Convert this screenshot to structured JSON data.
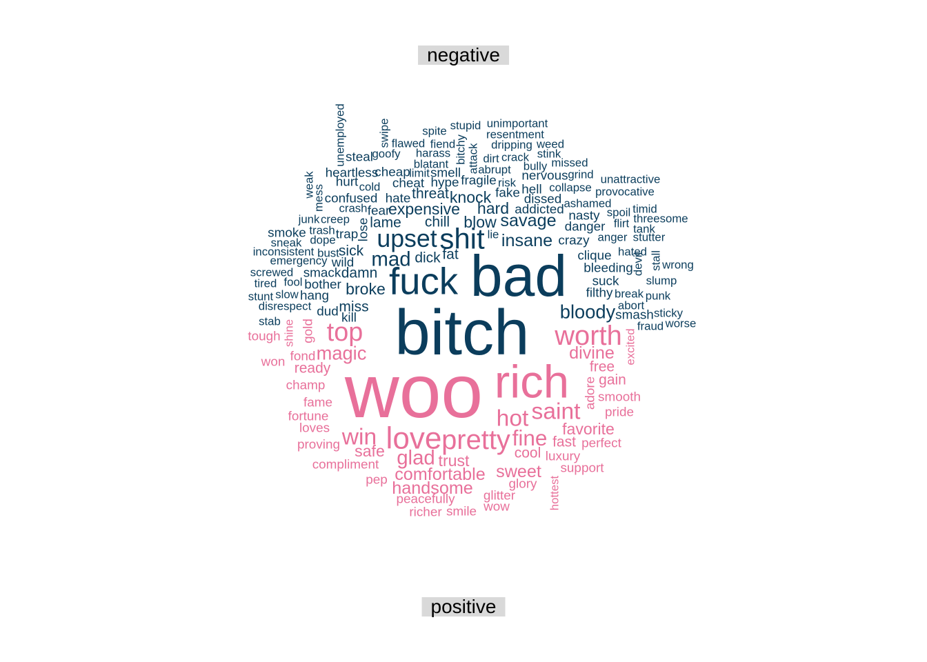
{
  "chart_data": {
    "type": "wordcloud",
    "groups": [
      {
        "name": "negative",
        "color": "#0b3d5c"
      },
      {
        "name": "positive",
        "color": "#e8709a"
      }
    ],
    "words": [
      [
        "bitch",
        "negative",
        44,
        670,
        482,
        0
      ],
      [
        "bad",
        "negative",
        40,
        752,
        400,
        0
      ],
      [
        "fuck",
        "negative",
        26,
        614,
        408,
        0
      ],
      [
        "shit",
        "negative",
        20,
        670,
        346,
        0
      ],
      [
        "upset",
        "negative",
        17,
        590,
        346,
        0
      ],
      [
        "mad",
        "negative",
        14,
        567,
        376,
        0
      ],
      [
        "bloody",
        "negative",
        13,
        852,
        452,
        0
      ],
      [
        "insane",
        "negative",
        12,
        764,
        349,
        0
      ],
      [
        "savage",
        "negative",
        12,
        766,
        320,
        0
      ],
      [
        "hard",
        "negative",
        11,
        715,
        302,
        0
      ],
      [
        "knock",
        "negative",
        11,
        682,
        286,
        0
      ],
      [
        "expensive",
        "negative",
        11,
        615,
        303,
        0
      ],
      [
        "blow",
        "negative",
        11,
        696,
        322,
        0
      ],
      [
        "broke",
        "negative",
        11,
        530,
        419,
        0
      ],
      [
        "chill",
        "negative",
        10,
        634,
        322,
        0
      ],
      [
        "lame",
        "negative",
        10,
        559,
        323,
        0
      ],
      [
        "dick",
        "negative",
        10,
        620,
        374,
        0
      ],
      [
        "fat",
        "negative",
        10,
        653,
        369,
        0
      ],
      [
        "damn",
        "negative",
        10,
        521,
        396,
        0
      ],
      [
        "sick",
        "negative",
        10,
        509,
        364,
        0
      ],
      [
        "wild",
        "negative",
        9,
        497,
        381,
        0
      ],
      [
        "miss",
        "negative",
        10,
        513,
        445,
        0
      ],
      [
        "kill",
        "negative",
        9,
        506,
        461,
        0
      ],
      [
        "dud",
        "negative",
        9,
        475,
        452,
        0
      ],
      [
        "suck",
        "negative",
        9,
        878,
        408,
        0
      ],
      [
        "filthy",
        "negative",
        9,
        869,
        425,
        0
      ],
      [
        "break",
        "negative",
        8,
        912,
        426,
        0
      ],
      [
        "abort",
        "negative",
        8,
        915,
        443,
        0
      ],
      [
        "smash",
        "negative",
        9,
        920,
        457,
        0
      ],
      [
        "sticky",
        "negative",
        8,
        969,
        454,
        0
      ],
      [
        "worse",
        "negative",
        8,
        987,
        469,
        0
      ],
      [
        "fraud",
        "negative",
        8,
        943,
        473,
        0
      ],
      [
        "punk",
        "negative",
        8,
        954,
        429,
        0
      ],
      [
        "slump",
        "negative",
        8,
        959,
        407,
        0
      ],
      [
        "wrong",
        "negative",
        8,
        983,
        384,
        0
      ],
      [
        "stall",
        "negative",
        8,
        951,
        378,
        -90
      ],
      [
        "devil",
        "negative",
        8,
        925,
        383,
        -90
      ],
      [
        "hated",
        "negative",
        8,
        917,
        365,
        0
      ],
      [
        "bleeding",
        "negative",
        9,
        882,
        389,
        0
      ],
      [
        "clique",
        "negative",
        9,
        862,
        371,
        0
      ],
      [
        "crazy",
        "negative",
        9,
        832,
        349,
        0
      ],
      [
        "anger",
        "negative",
        8,
        888,
        344,
        0
      ],
      [
        "stutter",
        "negative",
        8,
        941,
        344,
        0
      ],
      [
        "tank",
        "negative",
        8,
        934,
        332,
        0
      ],
      [
        "threesome",
        "negative",
        8,
        958,
        317,
        0
      ],
      [
        "timid",
        "negative",
        8,
        935,
        303,
        0
      ],
      [
        "flirt",
        "negative",
        8,
        901,
        324,
        0
      ],
      [
        "spoil",
        "negative",
        8,
        897,
        308,
        0
      ],
      [
        "danger",
        "negative",
        9,
        848,
        329,
        0
      ],
      [
        "nasty",
        "negative",
        9,
        847,
        313,
        0
      ],
      [
        "ashamed",
        "negative",
        8,
        852,
        295,
        0
      ],
      [
        "provocative",
        "negative",
        8,
        906,
        278,
        0
      ],
      [
        "unattractive",
        "negative",
        8,
        914,
        260,
        0
      ],
      [
        "collapse",
        "negative",
        8,
        827,
        272,
        0
      ],
      [
        "grind",
        "negative",
        8,
        842,
        253,
        0
      ],
      [
        "missed",
        "negative",
        8,
        826,
        236,
        0
      ],
      [
        "stink",
        "negative",
        8,
        796,
        223,
        0
      ],
      [
        "weed",
        "negative",
        8,
        798,
        209,
        0
      ],
      [
        "bully",
        "negative",
        8,
        776,
        241,
        0
      ],
      [
        "crack",
        "negative",
        8,
        747,
        228,
        0
      ],
      [
        "dirt",
        "negative",
        8,
        712,
        230,
        0
      ],
      [
        "nervous",
        "negative",
        9,
        790,
        255,
        0
      ],
      [
        "hell",
        "negative",
        9,
        771,
        275,
        0
      ],
      [
        "dissed",
        "negative",
        9,
        787,
        289,
        0
      ],
      [
        "addicted",
        "negative",
        9,
        782,
        304,
        0
      ],
      [
        "risk",
        "negative",
        8,
        735,
        265,
        0
      ],
      [
        "fake",
        "negative",
        9,
        736,
        280,
        0
      ],
      [
        "fragile",
        "negative",
        9,
        694,
        262,
        0
      ],
      [
        "abrupt",
        "negative",
        8,
        717,
        246,
        0
      ],
      [
        "attack",
        "negative",
        8,
        686,
        230,
        -90
      ],
      [
        "bitchy",
        "negative",
        8,
        668,
        217,
        -90
      ],
      [
        "dripping",
        "negative",
        8,
        742,
        210,
        0
      ],
      [
        "resentment",
        "negative",
        8,
        747,
        195,
        0
      ],
      [
        "unimportant",
        "negative",
        8,
        750,
        179,
        0
      ],
      [
        "stupid",
        "negative",
        8,
        675,
        182,
        0
      ],
      [
        "spite",
        "negative",
        8,
        630,
        190,
        0
      ],
      [
        "fiend",
        "negative",
        8,
        642,
        209,
        0
      ],
      [
        "flawed",
        "negative",
        8,
        592,
        208,
        0
      ],
      [
        "swipe",
        "negative",
        8,
        557,
        193,
        -90
      ],
      [
        "harass",
        "negative",
        8,
        628,
        222,
        0
      ],
      [
        "blatant",
        "negative",
        8,
        625,
        238,
        0
      ],
      [
        "smell",
        "negative",
        9,
        646,
        251,
        0
      ],
      [
        "hype",
        "negative",
        9,
        645,
        265,
        0
      ],
      [
        "threat",
        "negative",
        10,
        624,
        281,
        0
      ],
      [
        "cheat",
        "negative",
        9,
        592,
        266,
        0
      ],
      [
        "limit",
        "negative",
        8,
        608,
        251,
        0
      ],
      [
        "cheap",
        "negative",
        9,
        569,
        250,
        0
      ],
      [
        "goofy",
        "negative",
        8,
        560,
        223,
        0
      ],
      [
        "steal",
        "negative",
        9,
        521,
        228,
        0
      ],
      [
        "unemployed",
        "negative",
        8,
        493,
        196,
        -90
      ],
      [
        "heartless",
        "negative",
        9,
        510,
        251,
        0
      ],
      [
        "hurt",
        "negative",
        9,
        503,
        264,
        0
      ],
      [
        "cold",
        "negative",
        8,
        536,
        271,
        0
      ],
      [
        "confused",
        "negative",
        9,
        509,
        288,
        0
      ],
      [
        "hate",
        "negative",
        9,
        577,
        288,
        0
      ],
      [
        "crash",
        "negative",
        8,
        512,
        302,
        0
      ],
      [
        "fear",
        "negative",
        9,
        549,
        306,
        0
      ],
      [
        "weak",
        "negative",
        8,
        448,
        268,
        -90
      ],
      [
        "mess",
        "negative",
        8,
        462,
        287,
        -90
      ],
      [
        "junk",
        "negative",
        8,
        448,
        318,
        0
      ],
      [
        "creep",
        "negative",
        8,
        486,
        318,
        0
      ],
      [
        "lose",
        "negative",
        9,
        527,
        333,
        -90
      ],
      [
        "trash",
        "negative",
        8,
        467,
        334,
        0
      ],
      [
        "trap",
        "negative",
        9,
        503,
        340,
        0
      ],
      [
        "smoke",
        "negative",
        9,
        416,
        338,
        0
      ],
      [
        "dope",
        "negative",
        8,
        468,
        348,
        0
      ],
      [
        "sneak",
        "negative",
        8,
        415,
        352,
        0
      ],
      [
        "lie",
        "negative",
        8,
        715,
        340,
        0
      ],
      [
        "inconsistent",
        "negative",
        8,
        411,
        365,
        0
      ],
      [
        "bust",
        "negative",
        8,
        476,
        367,
        0
      ],
      [
        "emergency",
        "negative",
        8,
        433,
        378,
        0
      ],
      [
        "smack",
        "negative",
        9,
        467,
        396,
        0
      ],
      [
        "screwed",
        "negative",
        8,
        394,
        395,
        0
      ],
      [
        "tired",
        "negative",
        8,
        385,
        411,
        0
      ],
      [
        "fool",
        "negative",
        8,
        425,
        409,
        0
      ],
      [
        "bother",
        "negative",
        9,
        468,
        413,
        0
      ],
      [
        "stunt",
        "negative",
        8,
        378,
        430,
        0
      ],
      [
        "slow",
        "negative",
        8,
        416,
        427,
        0
      ],
      [
        "hang",
        "negative",
        9,
        456,
        429,
        0
      ],
      [
        "disrespect",
        "negative",
        8,
        413,
        444,
        0
      ],
      [
        "stab",
        "negative",
        8,
        391,
        466,
        0
      ],
      [
        "woo",
        "positive",
        52,
        600,
        568,
        0
      ],
      [
        "rich",
        "positive",
        32,
        771,
        554,
        0
      ],
      [
        "love",
        "positive",
        21,
        600,
        636,
        0
      ],
      [
        "pretty",
        "positive",
        19,
        690,
        638,
        0
      ],
      [
        "worth",
        "positive",
        19,
        853,
        487,
        0
      ],
      [
        "top",
        "positive",
        18,
        500,
        482,
        0
      ],
      [
        "saint",
        "positive",
        16,
        806,
        597,
        0
      ],
      [
        "hot",
        "positive",
        16,
        743,
        607,
        0
      ],
      [
        "win",
        "positive",
        16,
        521,
        634,
        0
      ],
      [
        "fine",
        "positive",
        15,
        768,
        635,
        0
      ],
      [
        "glad",
        "positive",
        14,
        603,
        664,
        0
      ],
      [
        "magic",
        "positive",
        13,
        495,
        512,
        0
      ],
      [
        "divine",
        "positive",
        12,
        858,
        512,
        0
      ],
      [
        "comfortable",
        "positive",
        12,
        638,
        688,
        0
      ],
      [
        "sweet",
        "positive",
        12,
        752,
        684,
        0
      ],
      [
        "handsome",
        "positive",
        12,
        627,
        708,
        0
      ],
      [
        "safe",
        "positive",
        11,
        536,
        654,
        0
      ],
      [
        "trust",
        "positive",
        11,
        658,
        668,
        0
      ],
      [
        "favorite",
        "positive",
        11,
        853,
        622,
        0
      ],
      [
        "fast",
        "positive",
        10,
        818,
        641,
        0
      ],
      [
        "cool",
        "positive",
        10,
        765,
        657,
        0
      ],
      [
        "ready",
        "positive",
        10,
        453,
        534,
        0
      ],
      [
        "free",
        "positive",
        10,
        873,
        532,
        0
      ],
      [
        "gain",
        "positive",
        10,
        888,
        551,
        0
      ],
      [
        "adore",
        "positive",
        9,
        856,
        570,
        -90
      ],
      [
        "gold",
        "positive",
        9,
        447,
        480,
        -90
      ],
      [
        "shine",
        "positive",
        8,
        419,
        483,
        -90
      ],
      [
        "excited",
        "positive",
        8,
        914,
        503,
        -90
      ],
      [
        "hottest",
        "positive",
        8,
        804,
        715,
        -90
      ],
      [
        "tough",
        "positive",
        9,
        383,
        488,
        0
      ],
      [
        "won",
        "positive",
        9,
        396,
        525,
        0
      ],
      [
        "fond",
        "positive",
        9,
        439,
        517,
        0
      ],
      [
        "champ",
        "positive",
        9,
        443,
        559,
        0
      ],
      [
        "fame",
        "positive",
        9,
        461,
        584,
        0
      ],
      [
        "fortune",
        "positive",
        9,
        447,
        604,
        0
      ],
      [
        "loves",
        "positive",
        9,
        456,
        621,
        0
      ],
      [
        "proving",
        "positive",
        9,
        462,
        645,
        0
      ],
      [
        "compliment",
        "positive",
        9,
        501,
        674,
        0
      ],
      [
        "pep",
        "positive",
        9,
        546,
        696,
        0
      ],
      [
        "peacefully",
        "positive",
        9,
        617,
        724,
        0
      ],
      [
        "richer",
        "positive",
        9,
        617,
        743,
        0
      ],
      [
        "smile",
        "positive",
        9,
        669,
        742,
        0
      ],
      [
        "glitter",
        "positive",
        9,
        724,
        719,
        0
      ],
      [
        "wow",
        "positive",
        9,
        720,
        735,
        0
      ],
      [
        "glory",
        "positive",
        9,
        758,
        702,
        0
      ],
      [
        "support",
        "positive",
        9,
        844,
        679,
        0
      ],
      [
        "luxury",
        "positive",
        9,
        816,
        662,
        0
      ],
      [
        "perfect",
        "positive",
        9,
        872,
        643,
        0
      ],
      [
        "pride",
        "positive",
        9,
        898,
        598,
        0
      ],
      [
        "smooth",
        "positive",
        9,
        898,
        576,
        0
      ]
    ]
  }
}
